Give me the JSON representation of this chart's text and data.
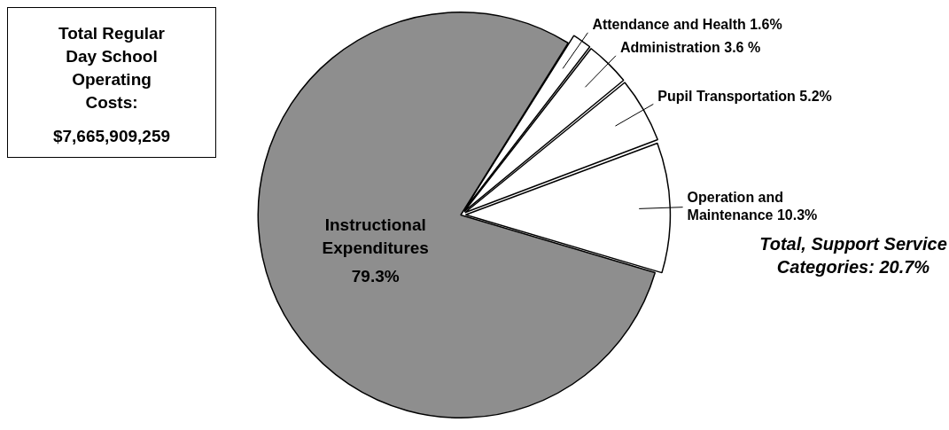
{
  "chart_data": {
    "type": "pie",
    "categories": [
      "Attendance and Health",
      "Administration",
      "Pupil Transportation",
      "Operation and Maintenance",
      "Instructional Expenditures"
    ],
    "values": [
      1.6,
      3.6,
      5.2,
      10.3,
      79.3
    ],
    "value_labels": [
      "1.6%",
      "3.6 %",
      "5.2%",
      "10.3%",
      "79.3%"
    ],
    "colors": [
      "#ffffff",
      "#ffffff",
      "#ffffff",
      "#ffffff",
      "#8e8e8e"
    ],
    "annotations": [
      "Total Regular Day School Operating Costs:",
      "$7,665,909,259",
      "Total, Support Service Categories: 20.7%"
    ],
    "legend": false
  }
}
